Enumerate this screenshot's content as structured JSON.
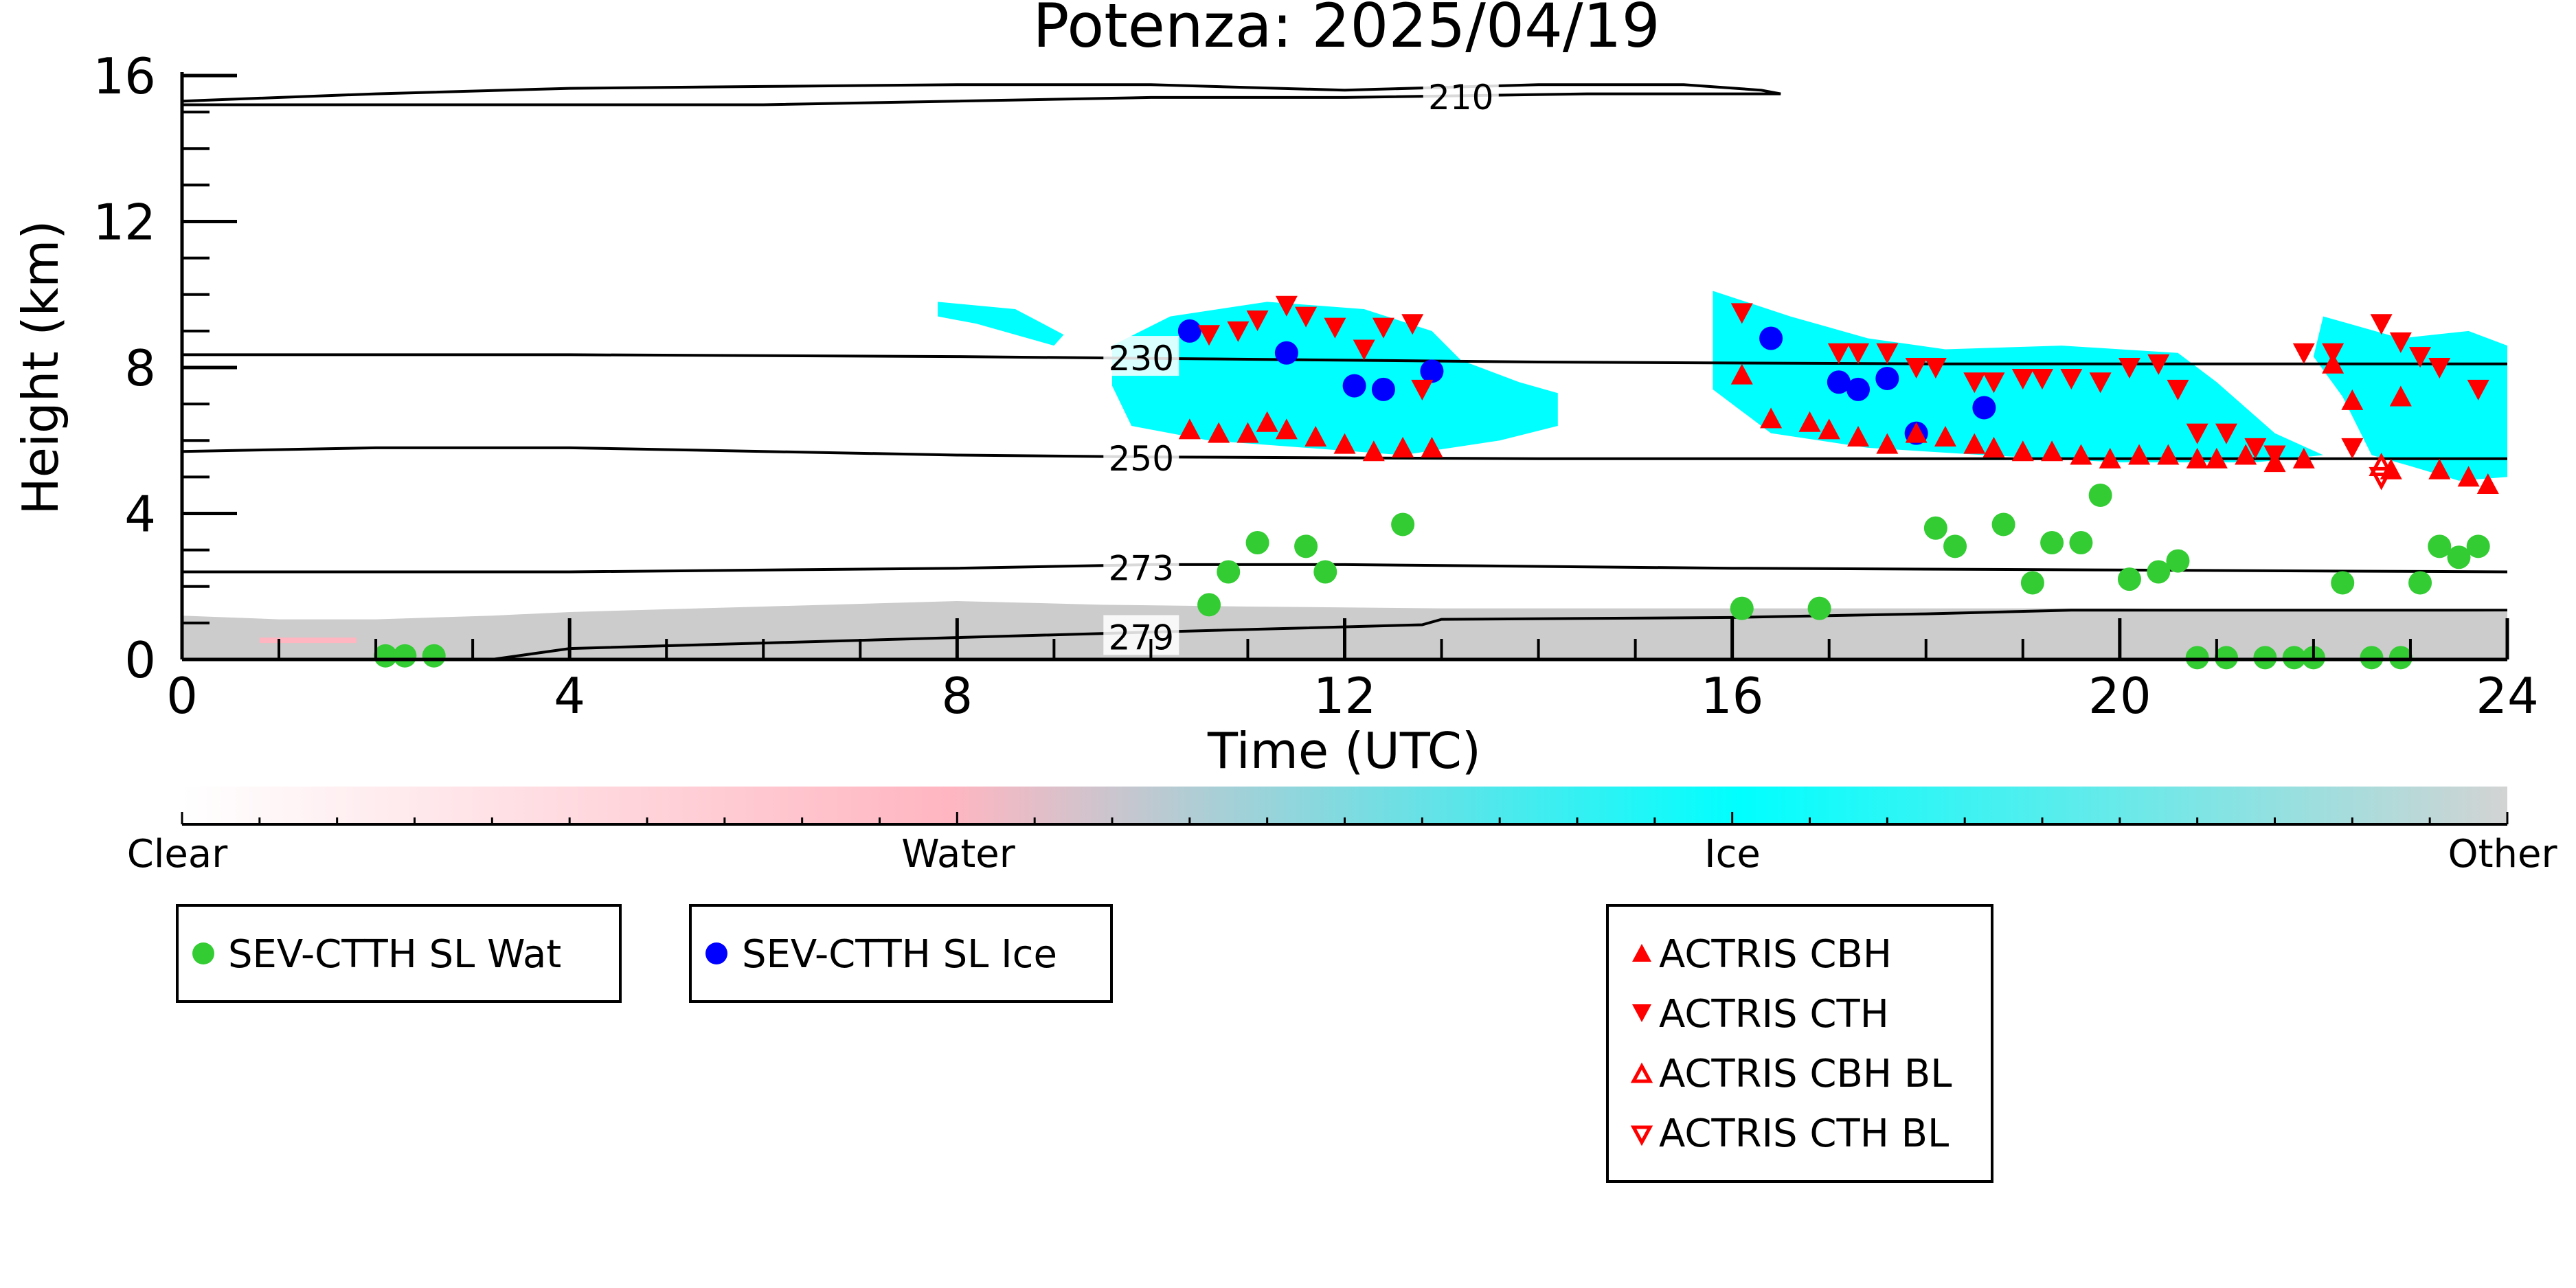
{
  "chart_data": {
    "type": "scatter",
    "title": "Potenza: 2025/04/19",
    "xlabel": "Time (UTC)",
    "ylabel": "Height (km)",
    "xlim": [
      0,
      24
    ],
    "ylim": [
      0,
      16
    ],
    "x_ticks": [
      0,
      4,
      8,
      12,
      16,
      20,
      24
    ],
    "y_ticks": [
      0,
      4,
      8,
      12,
      16
    ],
    "colorbar": {
      "labels": [
        "Clear",
        "Water",
        "Ice",
        "Other"
      ],
      "colors": [
        "#ffffff",
        "#ffb6c1",
        "#00ffff",
        "#d3d3d3"
      ]
    },
    "colors": {
      "water": "#33cc33",
      "ice": "#0000ff",
      "actris": "#ff0000",
      "cloud_ice": "#00ffff",
      "cloud_other": "#cccccc",
      "cloud_water": "#ffb6c1"
    },
    "contours": [
      {
        "label": "210",
        "points": [
          [
            0,
            15.3
          ],
          [
            2,
            15.5
          ],
          [
            4,
            15.65
          ],
          [
            6,
            15.7
          ],
          [
            8,
            15.75
          ],
          [
            10,
            15.75
          ],
          [
            12,
            15.6
          ],
          [
            14,
            15.75
          ],
          [
            15.5,
            15.75
          ],
          [
            16.3,
            15.6
          ],
          [
            16.5,
            15.5
          ],
          [
            14.5,
            15.5
          ],
          [
            12,
            15.4
          ],
          [
            10,
            15.4
          ],
          [
            8,
            15.3
          ],
          [
            6,
            15.2
          ],
          [
            4,
            15.2
          ],
          [
            2,
            15.2
          ],
          [
            0,
            15.2
          ]
        ]
      },
      {
        "label": "230",
        "points": [
          [
            0,
            8.35
          ],
          [
            4,
            8.35
          ],
          [
            8,
            8.3
          ],
          [
            10,
            8.25
          ],
          [
            14,
            8.15
          ],
          [
            18,
            8.1
          ],
          [
            22,
            8.1
          ],
          [
            24,
            8.1
          ]
        ]
      },
      {
        "label": "250",
        "points": [
          [
            0,
            5.7
          ],
          [
            2,
            5.8
          ],
          [
            4,
            5.8
          ],
          [
            8,
            5.6
          ],
          [
            10,
            5.55
          ],
          [
            14,
            5.5
          ],
          [
            18,
            5.5
          ],
          [
            22,
            5.5
          ],
          [
            24,
            5.5
          ]
        ]
      },
      {
        "label": "273",
        "points": [
          [
            0,
            2.4
          ],
          [
            4,
            2.4
          ],
          [
            8,
            2.5
          ],
          [
            10,
            2.6
          ],
          [
            12,
            2.6
          ],
          [
            16,
            2.5
          ],
          [
            20,
            2.45
          ],
          [
            24,
            2.4
          ]
        ]
      },
      {
        "label": "279",
        "points": [
          [
            3.2,
            0
          ],
          [
            4,
            0.3
          ],
          [
            6,
            0.45
          ],
          [
            8,
            0.6
          ],
          [
            10,
            0.75
          ],
          [
            12.8,
            0.95
          ],
          [
            13,
            1.1
          ],
          [
            16,
            1.15
          ],
          [
            18,
            1.25
          ],
          [
            19.5,
            1.35
          ],
          [
            22,
            1.35
          ],
          [
            24,
            1.35
          ]
        ]
      }
    ],
    "series": [
      {
        "name": "SEV-CTTH SL Wat",
        "marker": "circle",
        "x": [
          2.1,
          2.3,
          2.6,
          10.6,
          10.8,
          11.1,
          11.6,
          11.8,
          12.6,
          16.1,
          16.9,
          18.1,
          18.3,
          18.8,
          19.1,
          19.3,
          19.6,
          19.8,
          20.1,
          20.4,
          20.6,
          20.8,
          21.1,
          21.5,
          21.8,
          22.0,
          22.3,
          22.6,
          22.9,
          23.1,
          23.3,
          23.5,
          23.7
        ],
        "y": [
          0.1,
          0.1,
          0.1,
          1.5,
          2.4,
          3.2,
          3.1,
          2.4,
          3.7,
          1.4,
          1.4,
          3.6,
          3.1,
          3.7,
          2.1,
          3.2,
          3.2,
          4.5,
          2.2,
          2.4,
          2.7,
          0.05,
          0.05,
          0.05,
          0.05,
          0.05,
          2.1,
          0.05,
          0.05,
          2.1,
          3.1,
          2.8,
          3.1
        ]
      },
      {
        "name": "SEV-CTTH SL Ice",
        "marker": "circle",
        "x": [
          10.4,
          11.4,
          12.1,
          12.4,
          12.9,
          16.4,
          17.1,
          17.3,
          17.6,
          17.9,
          18.6
        ],
        "y": [
          9.0,
          8.4,
          7.5,
          7.4,
          7.9,
          8.8,
          7.6,
          7.4,
          7.7,
          6.2,
          6.9
        ]
      },
      {
        "name": "ACTRIS CBH",
        "marker": "triangle-up",
        "x": [
          10.4,
          10.7,
          11.0,
          11.2,
          11.4,
          11.7,
          12.0,
          12.3,
          12.6,
          12.9,
          16.1,
          16.4,
          16.8,
          17.0,
          17.3,
          17.6,
          17.9,
          18.2,
          18.5,
          18.7,
          19.0,
          19.3,
          19.6,
          19.9,
          20.2,
          20.5,
          20.8,
          21.0,
          21.3,
          21.6,
          21.9,
          22.2,
          22.4,
          22.8,
          22.9,
          23.3,
          23.6,
          23.8
        ],
        "y": [
          6.3,
          6.2,
          6.2,
          6.5,
          6.3,
          6.1,
          5.9,
          5.7,
          5.8,
          5.8,
          7.8,
          6.6,
          6.5,
          6.3,
          6.1,
          5.9,
          6.2,
          6.1,
          5.9,
          5.8,
          5.7,
          5.7,
          5.6,
          5.5,
          5.6,
          5.6,
          5.5,
          5.5,
          5.6,
          5.4,
          5.5,
          8.1,
          7.1,
          5.2,
          7.2,
          5.2,
          5.0,
          4.8
        ]
      },
      {
        "name": "ACTRIS CTH",
        "marker": "triangle-down",
        "x": [
          10.6,
          10.9,
          11.1,
          11.4,
          11.6,
          11.9,
          12.2,
          12.4,
          12.7,
          12.8,
          16.1,
          17.1,
          17.3,
          17.6,
          17.9,
          18.1,
          18.5,
          18.7,
          19.0,
          19.2,
          19.5,
          19.8,
          20.1,
          20.4,
          20.6,
          20.8,
          21.1,
          21.4,
          21.6,
          21.9,
          22.2,
          22.4,
          22.7,
          22.9,
          23.1,
          23.3,
          23.7
        ],
        "y": [
          8.9,
          9.0,
          9.3,
          9.7,
          9.4,
          9.1,
          8.5,
          9.1,
          9.2,
          7.4,
          9.5,
          8.4,
          8.4,
          8.4,
          8.0,
          8.0,
          7.6,
          7.6,
          7.7,
          7.7,
          7.7,
          7.6,
          8.0,
          8.1,
          7.4,
          6.2,
          6.2,
          5.8,
          5.6,
          8.4,
          8.4,
          5.8,
          9.2,
          8.7,
          8.3,
          8.0,
          7.4
        ]
      },
      {
        "name": "ACTRIS CBH BL",
        "marker": "triangle-up-open",
        "x": [
          22.7
        ],
        "y": [
          5.3
        ]
      },
      {
        "name": "ACTRIS CTH BL",
        "marker": "triangle-down-open",
        "x": [
          22.7
        ],
        "y": [
          5.0
        ]
      }
    ],
    "legend_placement": "below"
  }
}
